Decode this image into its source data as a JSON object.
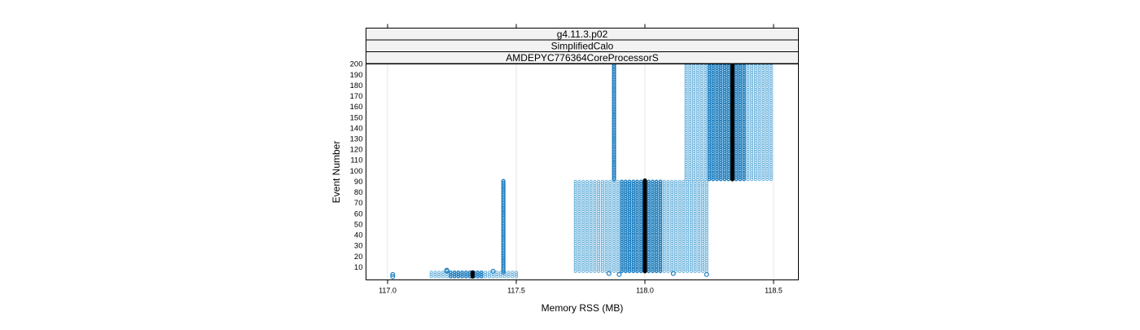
{
  "chart_data": {
    "type": "scatter",
    "strips": [
      "g4.11.3.p02",
      "SimplifiedCalo",
      "AMDEPYC776364CoreProcessorS"
    ],
    "xlabel": "Memory RSS (MB)",
    "ylabel": "Event Number",
    "xlim": [
      116.9,
      118.6
    ],
    "ylim": [
      1,
      200
    ],
    "xticks": [
      117.0,
      117.5,
      118.0,
      118.5
    ],
    "xtick_labels": [
      "117.0",
      "117.5",
      "118.0",
      "118.5"
    ],
    "yticks": [
      10,
      20,
      30,
      40,
      50,
      60,
      70,
      80,
      90,
      100,
      110,
      120,
      130,
      140,
      150,
      160,
      170,
      180,
      190,
      200
    ],
    "ytick_labels": [
      "10",
      "20",
      "30",
      "40",
      "50",
      "60",
      "70",
      "80",
      "90",
      "100",
      "110",
      "120",
      "130",
      "140",
      "150",
      "160",
      "170",
      "180",
      "190",
      "200"
    ],
    "grid": true,
    "colors": {
      "points": "#1f7fbf",
      "points_light": "#6db3dc",
      "median": "#000000"
    },
    "clusters": [
      {
        "x_min": 117.17,
        "x_max": 117.51,
        "core_min": 117.24,
        "core_max": 117.38,
        "y_min": 1,
        "y_max": 5,
        "median_x": 117.33
      },
      {
        "x_min": 117.73,
        "x_max": 118.24,
        "core_min": 117.9,
        "core_max": 118.07,
        "y_min": 6,
        "y_max": 91,
        "median_x": 118.0
      },
      {
        "x_min": 118.16,
        "x_max": 118.5,
        "core_min": 118.24,
        "core_max": 118.39,
        "y_min": 92,
        "y_max": 200,
        "median_x": 118.34
      }
    ],
    "columns": [
      {
        "x": 117.45,
        "y_min": 5,
        "y_max": 91
      },
      {
        "x": 117.88,
        "y_min": 92,
        "y_max": 200
      }
    ],
    "outliers": [
      {
        "x": 117.02,
        "y": 1
      },
      {
        "x": 117.02,
        "y": 3
      },
      {
        "x": 117.23,
        "y": 6
      },
      {
        "x": 117.23,
        "y": 7
      },
      {
        "x": 117.41,
        "y": 6
      },
      {
        "x": 117.86,
        "y": 4
      },
      {
        "x": 117.9,
        "y": 3
      },
      {
        "x": 118.11,
        "y": 4
      },
      {
        "x": 118.24,
        "y": 3
      }
    ]
  }
}
